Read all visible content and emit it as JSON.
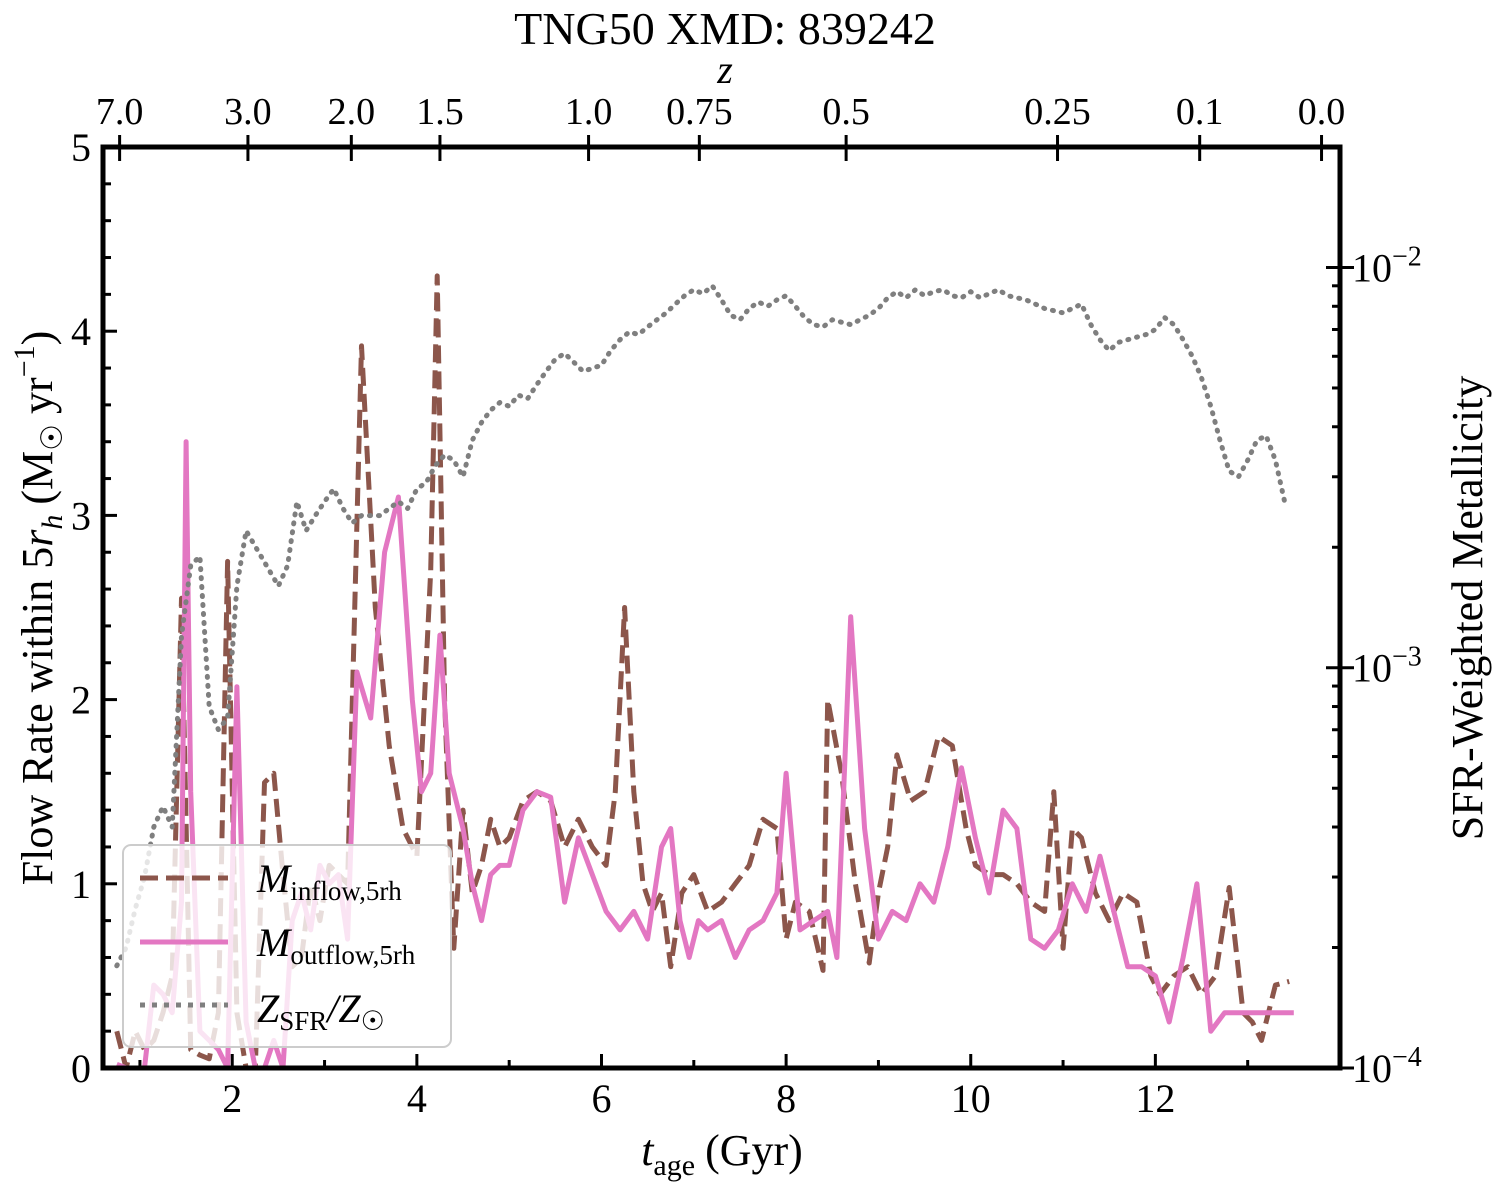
{
  "chart_data": {
    "type": "line",
    "title": "TNG50 XMD: 839242",
    "xlabel": "t_age (Gyr)",
    "xlabel_main": "t",
    "xlabel_sub": "age",
    "xlabel_unit": "(Gyr)",
    "ylabel": "Flow Rate within 5r_h (M☉ yr⁻¹)",
    "ylabel_left_main": "Flow Rate within 5",
    "ylabel_left_r": "r",
    "ylabel_left_sub": "h",
    "ylabel_left_unit": "(M",
    "ylabel_left_sun": "☉",
    "ylabel_left_yr": "yr",
    "ylabel_left_exp": "−1",
    "ylabel_left_close": ")",
    "y2label": "SFR-Weighted Metallicity",
    "top_axis_label": "z",
    "xlim": [
      0.6,
      14.0
    ],
    "ylim": [
      0,
      5
    ],
    "y2lim": [
      0.0001,
      0.02
    ],
    "y2scale": "log",
    "xticks": [
      2,
      4,
      6,
      8,
      10,
      12
    ],
    "xtick_labels": [
      "2",
      "4",
      "6",
      "8",
      "10",
      "12"
    ],
    "yticks": [
      0,
      1,
      2,
      3,
      4,
      5
    ],
    "ytick_labels": [
      "0",
      "1",
      "2",
      "3",
      "4",
      "5"
    ],
    "y2ticks": [
      {
        "value": 0.0001,
        "base": "10",
        "exp": "−4"
      },
      {
        "value": 0.001,
        "base": "10",
        "exp": "−3"
      },
      {
        "value": 0.01,
        "base": "10",
        "exp": "−2"
      }
    ],
    "top_ticks": [
      {
        "t": 0.78,
        "label": "7.0"
      },
      {
        "t": 2.17,
        "label": "3.0"
      },
      {
        "t": 3.29,
        "label": "2.0"
      },
      {
        "t": 4.25,
        "label": "1.5"
      },
      {
        "t": 5.86,
        "label": "1.0"
      },
      {
        "t": 7.06,
        "label": "0.75"
      },
      {
        "t": 8.65,
        "label": "0.5"
      },
      {
        "t": 10.94,
        "label": "0.25"
      },
      {
        "t": 12.48,
        "label": "0.1"
      },
      {
        "t": 13.8,
        "label": "0.0"
      }
    ],
    "legend_position": "lower-left",
    "series": [
      {
        "name": "M_inflow,5rh",
        "legend_main": "M",
        "legend_sub": "inflow,5rh",
        "color": "#8c564b",
        "style": "dashed",
        "axis": "left",
        "x": [
          0.75,
          0.85,
          0.95,
          1.05,
          1.15,
          1.25,
          1.35,
          1.45,
          1.55,
          1.65,
          1.75,
          1.85,
          1.95,
          2.05,
          2.15,
          2.25,
          2.35,
          2.45,
          2.55,
          2.65,
          2.75,
          2.85,
          2.95,
          3.05,
          3.15,
          3.25,
          3.4,
          3.55,
          3.7,
          3.85,
          4.0,
          4.15,
          4.22,
          4.3,
          4.4,
          4.5,
          4.6,
          4.7,
          4.8,
          4.9,
          5.0,
          5.15,
          5.3,
          5.45,
          5.6,
          5.75,
          5.9,
          6.05,
          6.15,
          6.25,
          6.35,
          6.45,
          6.55,
          6.65,
          6.75,
          6.87,
          7.0,
          7.15,
          7.3,
          7.45,
          7.6,
          7.75,
          7.9,
          8.0,
          8.1,
          8.25,
          8.4,
          8.45,
          8.6,
          8.75,
          8.9,
          9.0,
          9.1,
          9.2,
          9.35,
          9.5,
          9.65,
          9.8,
          9.95,
          10.05,
          10.2,
          10.35,
          10.5,
          10.65,
          10.8,
          10.9,
          11.0,
          11.1,
          11.2,
          11.35,
          11.5,
          11.65,
          11.8,
          11.95,
          12.05,
          12.2,
          12.35,
          12.5,
          12.65,
          12.8,
          12.95,
          13.05,
          13.15,
          13.3,
          13.45
        ],
        "values": [
          0.2,
          0.0,
          0.2,
          0.1,
          0.15,
          0.3,
          0.5,
          2.55,
          0.1,
          0.07,
          0.05,
          0.3,
          2.75,
          0.3,
          0.0,
          0.0,
          1.55,
          1.6,
          1.05,
          0.55,
          0.6,
          1.0,
          0.8,
          1.1,
          1.05,
          1.0,
          3.92,
          2.5,
          1.75,
          1.3,
          1.15,
          2.7,
          4.3,
          2.0,
          0.65,
          1.4,
          0.95,
          1.1,
          1.35,
          1.2,
          1.25,
          1.45,
          1.5,
          1.45,
          1.2,
          1.35,
          1.2,
          1.1,
          1.5,
          2.5,
          1.5,
          1.0,
          0.85,
          0.95,
          0.55,
          0.95,
          1.05,
          0.85,
          0.9,
          1.0,
          1.1,
          1.35,
          1.3,
          0.7,
          0.9,
          0.85,
          0.53,
          2.0,
          1.6,
          1.0,
          0.57,
          0.95,
          1.2,
          1.7,
          1.45,
          1.5,
          1.8,
          1.75,
          1.3,
          1.1,
          1.05,
          1.05,
          1.0,
          0.9,
          0.85,
          1.5,
          0.65,
          1.3,
          1.25,
          0.95,
          0.8,
          0.95,
          0.9,
          0.5,
          0.4,
          0.5,
          0.55,
          0.4,
          0.5,
          0.98,
          0.3,
          0.25,
          0.15,
          0.45,
          0.47
        ]
      },
      {
        "name": "M_outflow,5rh",
        "legend_main": "M",
        "legend_sub": "outflow,5rh",
        "color": "#e377c2",
        "style": "solid",
        "axis": "left",
        "x": [
          0.75,
          0.85,
          0.95,
          1.05,
          1.15,
          1.25,
          1.35,
          1.45,
          1.5,
          1.55,
          1.65,
          1.75,
          1.85,
          1.95,
          2.05,
          2.15,
          2.25,
          2.35,
          2.45,
          2.55,
          2.65,
          2.75,
          2.85,
          2.95,
          3.05,
          3.15,
          3.25,
          3.35,
          3.5,
          3.65,
          3.8,
          3.95,
          4.05,
          4.15,
          4.25,
          4.35,
          4.5,
          4.6,
          4.7,
          4.8,
          4.9,
          5.0,
          5.15,
          5.3,
          5.45,
          5.6,
          5.75,
          5.9,
          6.05,
          6.2,
          6.35,
          6.5,
          6.65,
          6.75,
          6.85,
          6.95,
          7.05,
          7.15,
          7.3,
          7.45,
          7.6,
          7.75,
          7.9,
          8.0,
          8.15,
          8.3,
          8.45,
          8.55,
          8.7,
          8.85,
          9.0,
          9.15,
          9.3,
          9.45,
          9.6,
          9.75,
          9.9,
          10.05,
          10.2,
          10.35,
          10.5,
          10.65,
          10.8,
          10.95,
          11.1,
          11.25,
          11.4,
          11.55,
          11.7,
          11.85,
          12.0,
          12.15,
          12.3,
          12.45,
          12.6,
          12.75,
          12.9,
          13.05,
          13.2,
          13.35,
          13.5
        ],
        "values": [
          0.02,
          0.0,
          0.0,
          0.0,
          0.45,
          0.4,
          0.3,
          0.9,
          3.4,
          1.5,
          0.2,
          0.15,
          0.1,
          0.0,
          2.07,
          0.25,
          0.0,
          0.0,
          0.15,
          0.0,
          0.8,
          0.95,
          0.75,
          1.1,
          1.0,
          1.05,
          0.7,
          2.15,
          1.9,
          2.8,
          3.1,
          2.0,
          1.5,
          1.6,
          2.35,
          1.6,
          1.3,
          1.0,
          0.8,
          1.05,
          1.1,
          1.1,
          1.4,
          1.5,
          1.47,
          0.9,
          1.25,
          1.05,
          0.85,
          0.75,
          0.85,
          0.7,
          1.2,
          1.3,
          0.8,
          0.6,
          0.8,
          0.75,
          0.8,
          0.6,
          0.75,
          0.8,
          0.95,
          1.6,
          0.75,
          0.8,
          0.85,
          0.6,
          2.45,
          1.3,
          0.7,
          0.85,
          0.8,
          1.0,
          0.9,
          1.2,
          1.63,
          1.25,
          0.95,
          1.4,
          1.3,
          0.7,
          0.65,
          0.75,
          1.0,
          0.85,
          1.15,
          0.85,
          0.55,
          0.55,
          0.5,
          0.25,
          0.6,
          1.0,
          0.2,
          0.3,
          0.3,
          0.3,
          0.3,
          0.3,
          0.3
        ]
      },
      {
        "name": "Z_SFR/Z_sun",
        "legend_main": "Z",
        "legend_sub": "SFR",
        "legend_slash": "/Z",
        "legend_sun": "☉",
        "color": "#7f7f7f",
        "style": "dotted",
        "axis": "right",
        "x": [
          0.75,
          0.85,
          0.95,
          1.05,
          1.15,
          1.25,
          1.35,
          1.45,
          1.55,
          1.65,
          1.75,
          1.85,
          1.95,
          2.05,
          2.15,
          2.5,
          2.6,
          2.7,
          2.8,
          2.9,
          3.0,
          3.1,
          3.2,
          3.3,
          3.4,
          3.5,
          3.6,
          3.7,
          3.8,
          3.9,
          4.0,
          4.1,
          4.2,
          4.3,
          4.4,
          4.5,
          4.6,
          4.7,
          4.8,
          4.9,
          5.0,
          5.1,
          5.2,
          5.3,
          5.4,
          5.5,
          5.6,
          5.7,
          5.8,
          5.9,
          6.0,
          6.1,
          6.2,
          6.3,
          6.4,
          6.5,
          6.6,
          6.7,
          6.8,
          6.9,
          7.0,
          7.1,
          7.2,
          7.3,
          7.4,
          7.5,
          7.6,
          7.7,
          7.8,
          7.9,
          8.0,
          8.1,
          8.2,
          8.3,
          8.4,
          8.5,
          8.6,
          8.7,
          8.8,
          8.9,
          9.0,
          9.1,
          9.2,
          9.3,
          9.4,
          9.5,
          9.6,
          9.7,
          9.8,
          9.9,
          10.0,
          10.1,
          10.2,
          10.3,
          10.4,
          10.5,
          10.6,
          10.7,
          10.8,
          10.9,
          11.0,
          11.1,
          11.2,
          11.3,
          11.4,
          11.5,
          11.6,
          11.7,
          11.8,
          11.9,
          12.0,
          12.1,
          12.2,
          12.3,
          12.4,
          12.5,
          12.6,
          12.7,
          12.8,
          12.9,
          13.0,
          13.1,
          13.2,
          13.3,
          13.4
        ],
        "values": [
          0.00018,
          0.0002,
          0.00025,
          0.0003,
          0.0004,
          0.00045,
          0.0004,
          0.0012,
          0.0018,
          0.0019,
          0.0008,
          0.0007,
          0.00075,
          0.0016,
          0.0022,
          0.0016,
          0.0018,
          0.0026,
          0.0022,
          0.0024,
          0.0026,
          0.0028,
          0.0025,
          0.0023,
          0.0024,
          0.0024,
          0.0024,
          0.0025,
          0.0026,
          0.0025,
          0.0028,
          0.0029,
          0.0032,
          0.0034,
          0.0033,
          0.003,
          0.0037,
          0.0041,
          0.0044,
          0.0046,
          0.0045,
          0.0048,
          0.0047,
          0.0051,
          0.0055,
          0.0059,
          0.0061,
          0.0058,
          0.0055,
          0.0056,
          0.0057,
          0.0062,
          0.0066,
          0.0069,
          0.0068,
          0.0071,
          0.0074,
          0.0077,
          0.0081,
          0.0085,
          0.0088,
          0.0086,
          0.009,
          0.0083,
          0.0076,
          0.0074,
          0.0079,
          0.0082,
          0.008,
          0.0083,
          0.0085,
          0.008,
          0.0075,
          0.0072,
          0.0071,
          0.0074,
          0.0073,
          0.0072,
          0.0074,
          0.0076,
          0.0079,
          0.0084,
          0.0087,
          0.0084,
          0.0088,
          0.0085,
          0.0087,
          0.0088,
          0.0085,
          0.0084,
          0.0087,
          0.0084,
          0.0086,
          0.0088,
          0.0085,
          0.0084,
          0.0083,
          0.0081,
          0.0079,
          0.0078,
          0.0077,
          0.0079,
          0.0081,
          0.0072,
          0.0066,
          0.0062,
          0.0065,
          0.0066,
          0.0067,
          0.0068,
          0.007,
          0.0075,
          0.0072,
          0.0066,
          0.006,
          0.0053,
          0.0045,
          0.0037,
          0.0031,
          0.003,
          0.0033,
          0.0037,
          0.0038,
          0.0033,
          0.0026
        ]
      }
    ]
  }
}
